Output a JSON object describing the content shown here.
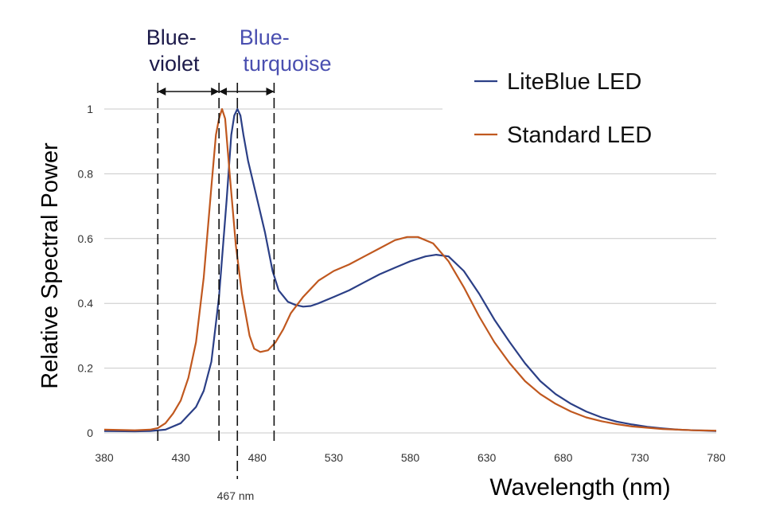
{
  "chart_data": {
    "type": "line",
    "title": "",
    "xlabel": "Wavelength (nm)",
    "ylabel": "Relative Spectral Power",
    "xlim": [
      380,
      780
    ],
    "ylim": [
      0,
      1
    ],
    "x_ticks": [
      380,
      430,
      480,
      530,
      580,
      630,
      680,
      730,
      780
    ],
    "y_ticks": [
      0,
      0.2,
      0.4,
      0.6,
      0.8,
      1
    ],
    "y_tick_labels": [
      "0",
      "0.2",
      "0.4",
      "0.6",
      "0.8",
      "1"
    ],
    "grid": "horizontal",
    "legend_position": "top-right",
    "series": [
      {
        "name": "LiteBlue LED",
        "color": "#2b3f86",
        "points": [
          [
            380,
            0.006
          ],
          [
            400,
            0.005
          ],
          [
            410,
            0.006
          ],
          [
            420,
            0.01
          ],
          [
            430,
            0.03
          ],
          [
            440,
            0.08
          ],
          [
            445,
            0.13
          ],
          [
            450,
            0.22
          ],
          [
            455,
            0.42
          ],
          [
            460,
            0.72
          ],
          [
            463,
            0.92
          ],
          [
            465,
            0.98
          ],
          [
            467,
            1.0
          ],
          [
            469,
            0.98
          ],
          [
            471,
            0.92
          ],
          [
            474,
            0.84
          ],
          [
            477,
            0.78
          ],
          [
            480,
            0.72
          ],
          [
            485,
            0.62
          ],
          [
            490,
            0.5
          ],
          [
            494,
            0.44
          ],
          [
            500,
            0.405
          ],
          [
            505,
            0.395
          ],
          [
            510,
            0.39
          ],
          [
            515,
            0.392
          ],
          [
            520,
            0.4
          ],
          [
            530,
            0.42
          ],
          [
            540,
            0.44
          ],
          [
            550,
            0.465
          ],
          [
            560,
            0.49
          ],
          [
            570,
            0.51
          ],
          [
            580,
            0.53
          ],
          [
            590,
            0.545
          ],
          [
            597,
            0.55
          ],
          [
            605,
            0.545
          ],
          [
            615,
            0.5
          ],
          [
            625,
            0.43
          ],
          [
            635,
            0.35
          ],
          [
            645,
            0.28
          ],
          [
            655,
            0.215
          ],
          [
            665,
            0.16
          ],
          [
            675,
            0.12
          ],
          [
            685,
            0.09
          ],
          [
            695,
            0.066
          ],
          [
            705,
            0.048
          ],
          [
            715,
            0.035
          ],
          [
            725,
            0.026
          ],
          [
            735,
            0.019
          ],
          [
            745,
            0.014
          ],
          [
            755,
            0.01
          ],
          [
            765,
            0.008
          ],
          [
            780,
            0.006
          ]
        ]
      },
      {
        "name": "Standard LED",
        "color": "#c0581f",
        "points": [
          [
            380,
            0.01
          ],
          [
            400,
            0.008
          ],
          [
            410,
            0.01
          ],
          [
            415,
            0.015
          ],
          [
            420,
            0.03
          ],
          [
            425,
            0.06
          ],
          [
            430,
            0.1
          ],
          [
            435,
            0.17
          ],
          [
            440,
            0.28
          ],
          [
            445,
            0.48
          ],
          [
            450,
            0.76
          ],
          [
            453,
            0.92
          ],
          [
            455,
            0.97
          ],
          [
            457,
            1.0
          ],
          [
            459,
            0.97
          ],
          [
            462,
            0.8
          ],
          [
            466,
            0.58
          ],
          [
            470,
            0.43
          ],
          [
            475,
            0.3
          ],
          [
            478,
            0.26
          ],
          [
            482,
            0.25
          ],
          [
            487,
            0.255
          ],
          [
            492,
            0.28
          ],
          [
            497,
            0.32
          ],
          [
            502,
            0.37
          ],
          [
            510,
            0.42
          ],
          [
            520,
            0.47
          ],
          [
            530,
            0.5
          ],
          [
            540,
            0.52
          ],
          [
            550,
            0.545
          ],
          [
            560,
            0.57
          ],
          [
            570,
            0.595
          ],
          [
            578,
            0.605
          ],
          [
            585,
            0.605
          ],
          [
            595,
            0.585
          ],
          [
            605,
            0.53
          ],
          [
            615,
            0.45
          ],
          [
            625,
            0.36
          ],
          [
            635,
            0.28
          ],
          [
            645,
            0.215
          ],
          [
            655,
            0.16
          ],
          [
            665,
            0.12
          ],
          [
            675,
            0.09
          ],
          [
            685,
            0.066
          ],
          [
            695,
            0.048
          ],
          [
            705,
            0.036
          ],
          [
            715,
            0.027
          ],
          [
            725,
            0.02
          ],
          [
            735,
            0.016
          ],
          [
            745,
            0.012
          ],
          [
            755,
            0.01
          ],
          [
            765,
            0.008
          ],
          [
            780,
            0.007
          ]
        ]
      }
    ],
    "annotations": {
      "blue_violet_label": [
        "Blue-",
        "violet"
      ],
      "blue_violet_color": "#1c1a4a",
      "blue_turquoise_label": [
        "Blue-",
        "turquoise"
      ],
      "blue_turquoise_color": "#4a4fb0",
      "peak_label": "467 nm",
      "boundary_wavelengths": [
        415,
        455,
        467,
        491
      ],
      "peak_wavelength": 467,
      "blue_violet_range": [
        415,
        455
      ],
      "blue_turquoise_range": [
        455,
        491
      ]
    }
  }
}
